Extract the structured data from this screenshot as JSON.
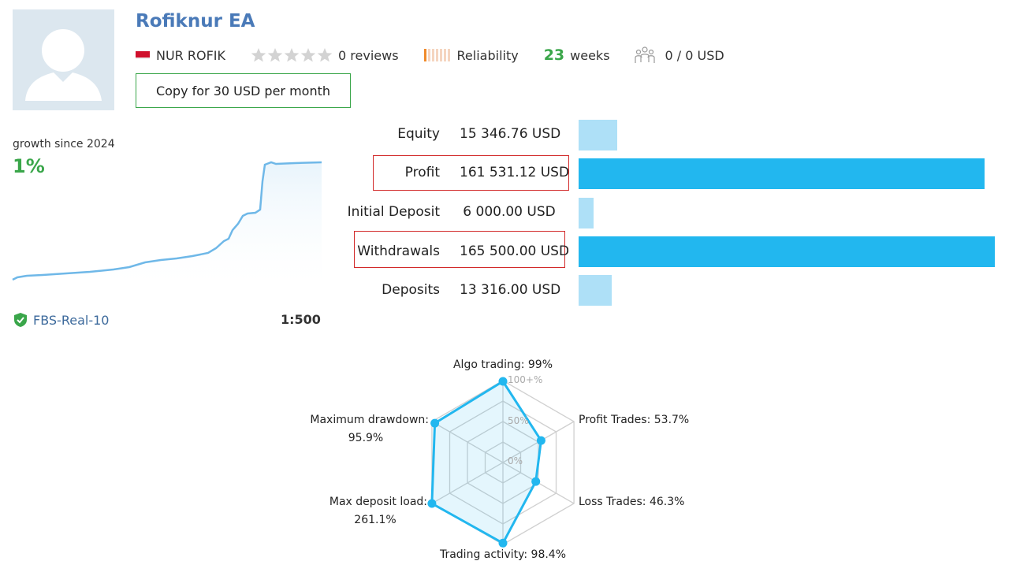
{
  "header": {
    "title": "Rofiknur EA",
    "author": "NUR ROFIK",
    "reviews": "0 reviews",
    "reliability_label": "Reliability",
    "weeks_value": "23",
    "weeks_label": "weeks",
    "subscribers": "0 / 0 USD",
    "copy_button": "Copy for 30 USD per month",
    "rating_stars": 0
  },
  "growth": {
    "label": "growth since 2024",
    "value": "1%",
    "server": "FBS-Real-10",
    "leverage": "1:500"
  },
  "stats": [
    {
      "label": "Equity",
      "value": "15 346.76 USD",
      "amount": 15346.76,
      "highlighted": false
    },
    {
      "label": "Profit",
      "value": "161 531.12 USD",
      "amount": 161531.12,
      "highlighted": true
    },
    {
      "label": "Initial Deposit",
      "value": "6 000.00 USD",
      "amount": 6000.0,
      "highlighted": false
    },
    {
      "label": "Withdrawals",
      "value": "165 500.00 USD",
      "amount": 165500.0,
      "highlighted": true
    },
    {
      "label": "Deposits",
      "value": "13 316.00 USD",
      "amount": 13316.0,
      "highlighted": false
    }
  ],
  "radar": {
    "ticks": [
      "100+%",
      "50%",
      "0%"
    ],
    "axes": [
      {
        "label": "Algo trading: 99%",
        "value": 99
      },
      {
        "label": "Profit Trades: 53.7%",
        "value": 53.7
      },
      {
        "label": "Loss Trades: 46.3%",
        "value": 46.3
      },
      {
        "label": "Trading activity: 98.4%",
        "value": 98.4
      },
      {
        "label_line1": "Max deposit load:",
        "label_line2": "261.1%",
        "value": 261.1
      },
      {
        "label_line1": "Maximum drawdown:",
        "label_line2": "95.9%",
        "value": 95.9
      }
    ]
  },
  "colors": {
    "accent_blue": "#22b7ef",
    "light_blue": "#aee0f7",
    "green": "#3aa64a",
    "title_blue": "#4a7ab8",
    "highlight_red": "#d22a2a"
  }
}
